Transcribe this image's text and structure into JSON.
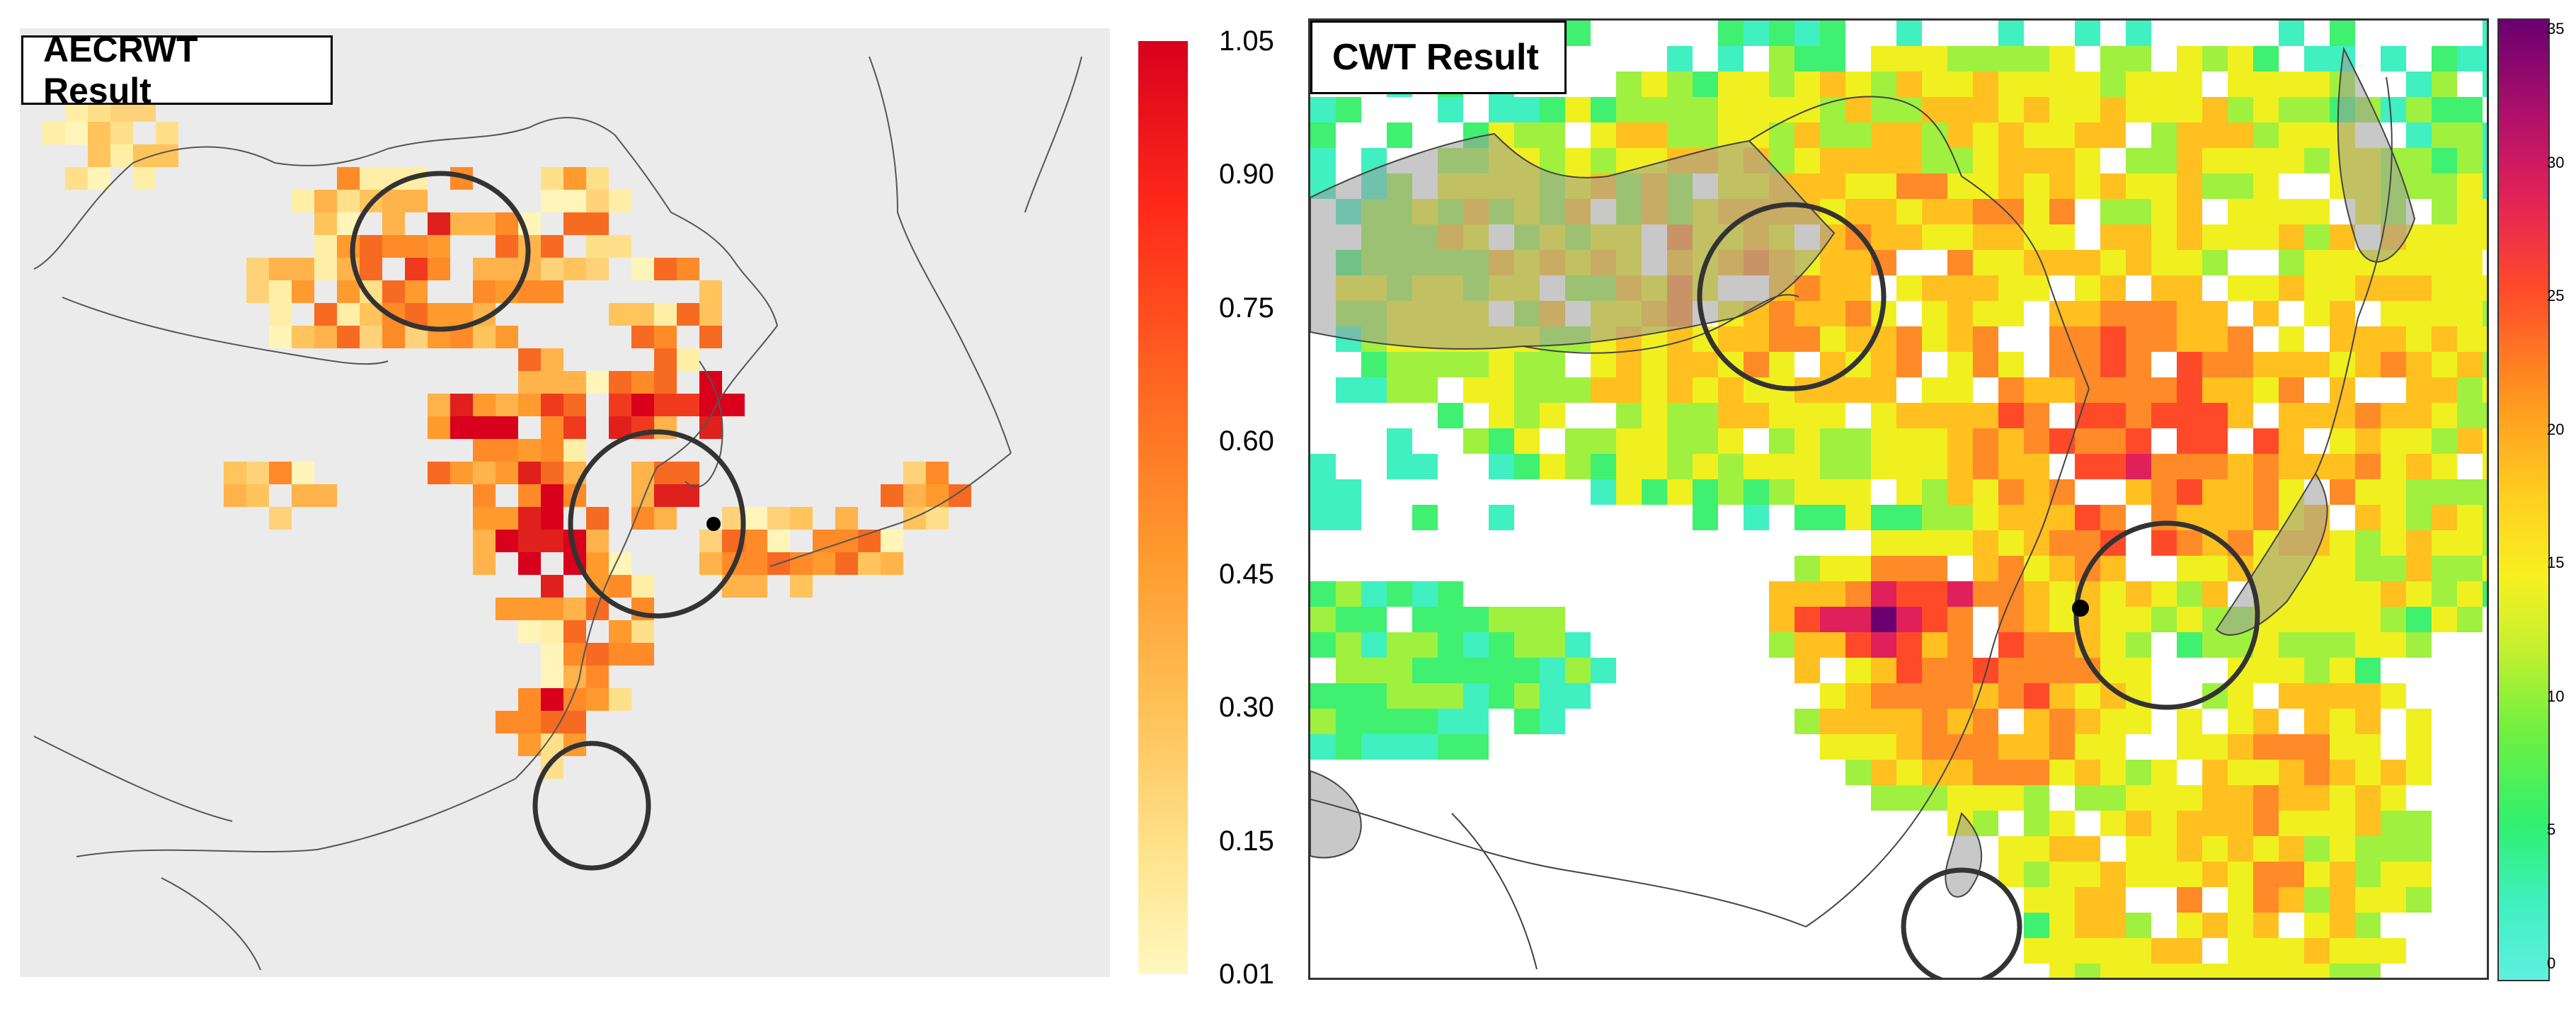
{
  "left_panel": {
    "title": "AECRWT Result",
    "colorbar_ticks": [
      "1.05",
      "0.90",
      "0.75",
      "0.60",
      "0.45",
      "0.30",
      "0.15",
      "0.01"
    ],
    "colors": {
      "low": "#fff5b8",
      "mid": "#ff9a2e",
      "high": "#d8001c",
      "background": "#ebebeb"
    }
  },
  "right_panel": {
    "title": "CWT Result",
    "colorbar_ticks": [
      "35",
      "30",
      "25",
      "20",
      "15",
      "10",
      "5",
      "0"
    ],
    "colors": {
      "low": "#5ff0e0",
      "mid": "#fff020",
      "high": "#6a0070",
      "background": "#ffffff"
    }
  }
}
